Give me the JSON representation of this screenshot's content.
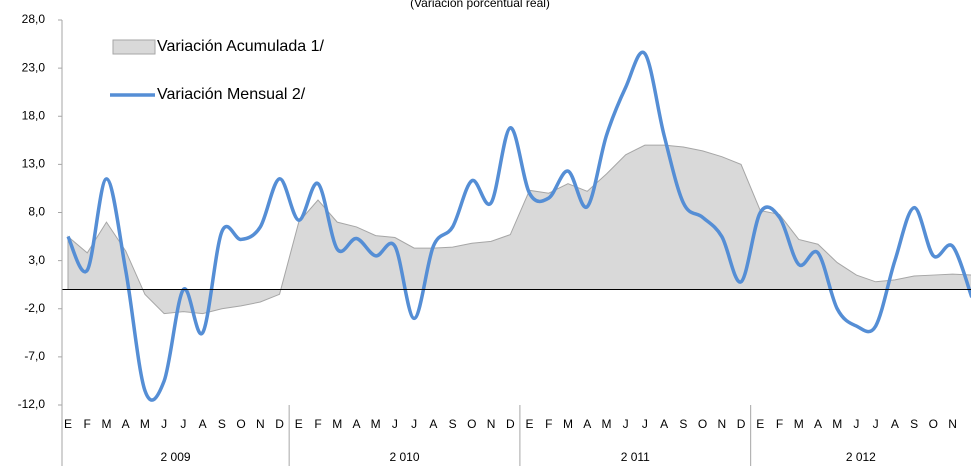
{
  "chart_data": {
    "type": "line",
    "subtitle": "(Variación porcentual real)",
    "categories": [
      "E",
      "F",
      "M",
      "A",
      "M",
      "J",
      "J",
      "A",
      "S",
      "O",
      "N",
      "D",
      "E",
      "F",
      "M",
      "A",
      "M",
      "J",
      "J",
      "A",
      "S",
      "O",
      "N",
      "D",
      "E",
      "F",
      "M",
      "A",
      "M",
      "J",
      "J",
      "A",
      "S",
      "O",
      "N",
      "D",
      "E",
      "F",
      "M",
      "A",
      "M",
      "J",
      "J",
      "A",
      "S",
      "O",
      "N",
      null
    ],
    "groups": [
      "2 009",
      "2 010",
      "2 011",
      "2 012"
    ],
    "series": [
      {
        "name": "Variación Acumulada 1/",
        "color": "#d9d9d9",
        "kind": "area",
        "values": [
          5.5,
          3.8,
          7.0,
          4.0,
          -0.5,
          -2.5,
          -2.3,
          -2.5,
          -2.0,
          -1.7,
          -1.3,
          -0.5,
          7.0,
          9.3,
          7.0,
          6.5,
          5.6,
          5.4,
          4.3,
          4.3,
          4.4,
          4.8,
          5.0,
          5.7,
          10.3,
          10.0,
          11.0,
          10.2,
          12.0,
          14.0,
          15.0,
          15.0,
          14.8,
          14.4,
          13.8,
          13.0,
          8.2,
          7.8,
          5.2,
          4.7,
          2.8,
          1.5,
          0.8,
          1.0,
          1.4,
          1.5,
          1.6,
          1.5
        ]
      },
      {
        "name": "Variación Mensual 2/",
        "color": "#558ed5",
        "kind": "line",
        "values": [
          5.5,
          2.0,
          11.5,
          2.0,
          -10.5,
          -9.5,
          0.0,
          -4.5,
          6.0,
          5.2,
          6.5,
          11.5,
          7.2,
          11.0,
          4.2,
          5.3,
          3.5,
          4.5,
          -3.0,
          4.5,
          6.5,
          11.3,
          9.0,
          16.8,
          10.0,
          9.5,
          12.3,
          8.6,
          16.0,
          21.0,
          24.5,
          16.0,
          9.0,
          7.5,
          5.5,
          0.8,
          8.0,
          7.5,
          2.6,
          3.8,
          -2.0,
          -3.8,
          -3.8,
          3.0,
          8.5,
          3.5,
          4.5,
          -0.8
        ]
      }
    ],
    "ylim": [
      -12,
      28
    ],
    "yticks": [
      {
        "value": -12,
        "label": "-12,0"
      },
      {
        "value": -7,
        "label": "-7,0"
      },
      {
        "value": -2,
        "label": "-2,0"
      },
      {
        "value": 3,
        "label": "3,0"
      },
      {
        "value": 8,
        "label": "8,0"
      },
      {
        "value": 13,
        "label": "13,0"
      },
      {
        "value": 18,
        "label": "18,0"
      },
      {
        "value": 23,
        "label": "23,0"
      },
      {
        "value": 28,
        "label": "28,0"
      }
    ]
  }
}
